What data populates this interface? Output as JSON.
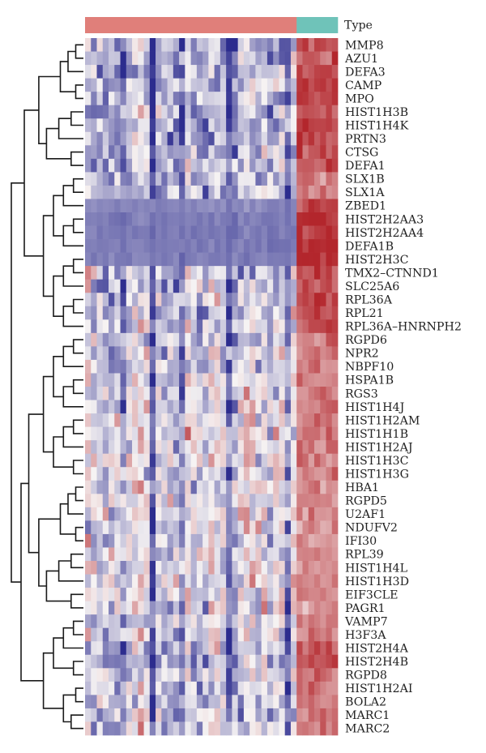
{
  "legend": {
    "label": "Type"
  },
  "colors": {
    "group_a": "#e07f7a",
    "group_b": "#6fc3b9",
    "low": "#2c2c8e",
    "mid": "#f6f3f3",
    "high": "#b3262c"
  },
  "chart_data": {
    "type": "heatmap",
    "title": "",
    "xlabel": "",
    "ylabel": "",
    "annotation_track": {
      "name": "Type",
      "groups": [
        {
          "count": 36,
          "color": "#e07f7a"
        },
        {
          "count": 7,
          "color": "#6fc3b9"
        }
      ]
    },
    "samples_count": 43,
    "rows": [
      "MMP8",
      "AZU1",
      "DEFA3",
      "CAMP",
      "MPO",
      "HIST1H3B",
      "HIST1H4K",
      "PRTN3",
      "CTSG",
      "DEFA1",
      "SLX1B",
      "SLX1A",
      "ZBED1",
      "HIST2H2AA3",
      "HIST2H2AA4",
      "DEFA1B",
      "HIST2H3C",
      "TMX2–CTNND1",
      "SLC25A6",
      "RPL36A",
      "RPL21",
      "RPL36A–HNRNPH2",
      "RGPD6",
      "NPR2",
      "NBPF10",
      "HSPA1B",
      "RGS3",
      "HIST1H4J",
      "HIST1H2AM",
      "HIST1H1B",
      "HIST1H2AJ",
      "HIST1H3C",
      "HIST1H3G",
      "HBA1",
      "RGPD5",
      "U2AF1",
      "NDUFV2",
      "IFI30",
      "RPL39",
      "HIST1H4L",
      "HIST1H3D",
      "EIF3CLE",
      "PAGR1",
      "VAMP7",
      "H3F3A",
      "HIST2H4A",
      "HIST2H4B",
      "RGPD8",
      "HIST1H2AI",
      "BOLA2",
      "MARC1",
      "MARC2"
    ],
    "row_group_means": [
      -0.35,
      -0.35,
      -0.35,
      -0.35,
      -0.35,
      -0.35,
      -0.35,
      -0.35,
      -0.35,
      -0.35,
      -0.3,
      -0.3,
      -0.55,
      -0.6,
      -0.6,
      -0.6,
      -0.6,
      -0.25,
      -0.25,
      -0.25,
      -0.25,
      -0.25,
      -0.15,
      -0.15,
      -0.15,
      -0.15,
      -0.15,
      -0.1,
      -0.1,
      -0.1,
      -0.1,
      -0.1,
      -0.1,
      -0.1,
      -0.1,
      -0.1,
      -0.1,
      -0.1,
      -0.1,
      -0.1,
      -0.1,
      -0.1,
      -0.1,
      -0.2,
      -0.2,
      -0.35,
      -0.35,
      -0.2,
      -0.2,
      -0.2,
      -0.2,
      -0.2
    ],
    "row_group_b_means": [
      0.8,
      0.8,
      0.8,
      0.8,
      0.8,
      0.8,
      0.8,
      0.8,
      0.8,
      0.8,
      0.6,
      0.6,
      0.9,
      1.0,
      1.0,
      1.0,
      1.0,
      0.8,
      0.8,
      0.8,
      0.8,
      0.8,
      0.6,
      0.6,
      0.6,
      0.6,
      0.6,
      0.6,
      0.6,
      0.6,
      0.6,
      0.6,
      0.5,
      0.5,
      0.5,
      0.5,
      0.5,
      0.5,
      0.5,
      0.5,
      0.5,
      0.5,
      0.5,
      0.6,
      0.6,
      0.8,
      0.8,
      0.6,
      0.6,
      0.6,
      0.6,
      0.6
    ],
    "row_dendrogram": "hierarchical clustering tree on left",
    "color_scale": {
      "low": "#2c2c8e",
      "mid": "#f6f3f3",
      "high": "#b3262c"
    },
    "legend_placement": "top-right"
  }
}
